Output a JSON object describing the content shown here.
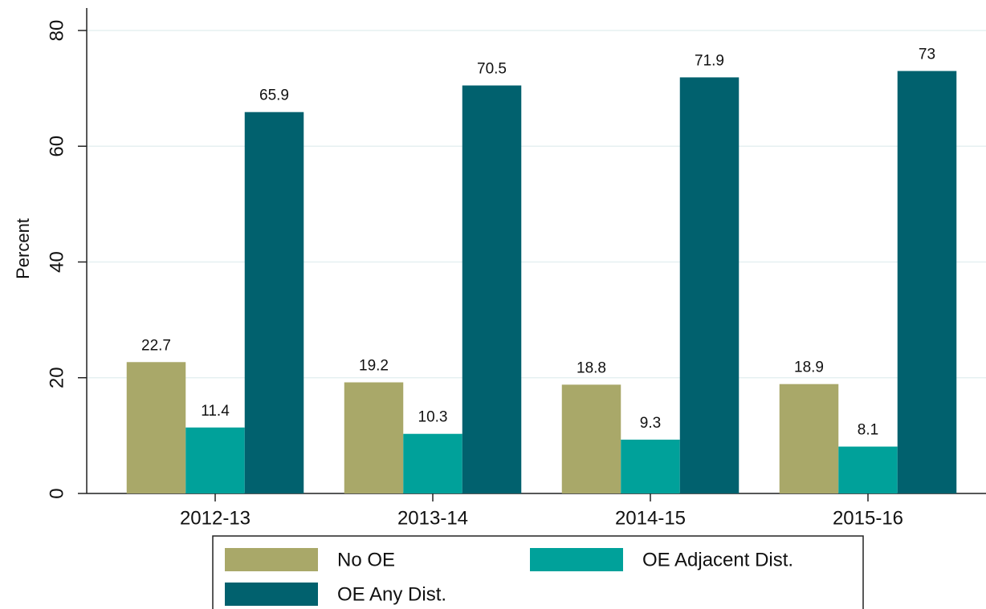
{
  "chart_data": {
    "type": "bar",
    "y_label": "Percent",
    "categories": [
      "2012-13",
      "2013-14",
      "2014-15",
      "2015-16"
    ],
    "series": [
      {
        "name": "No OE",
        "color": "#a9a869",
        "values": [
          22.7,
          19.2,
          18.8,
          18.9
        ]
      },
      {
        "name": "OE Adjacent Dist.",
        "color": "#00a19a",
        "values": [
          11.4,
          10.3,
          9.3,
          8.1
        ]
      },
      {
        "name": "OE Any Dist.",
        "color": "#01616e",
        "values": [
          65.9,
          70.5,
          71.9,
          73
        ]
      }
    ],
    "ylim": [
      0,
      80
    ],
    "yticks": [
      0,
      20,
      40,
      60,
      80
    ],
    "grid": true
  }
}
